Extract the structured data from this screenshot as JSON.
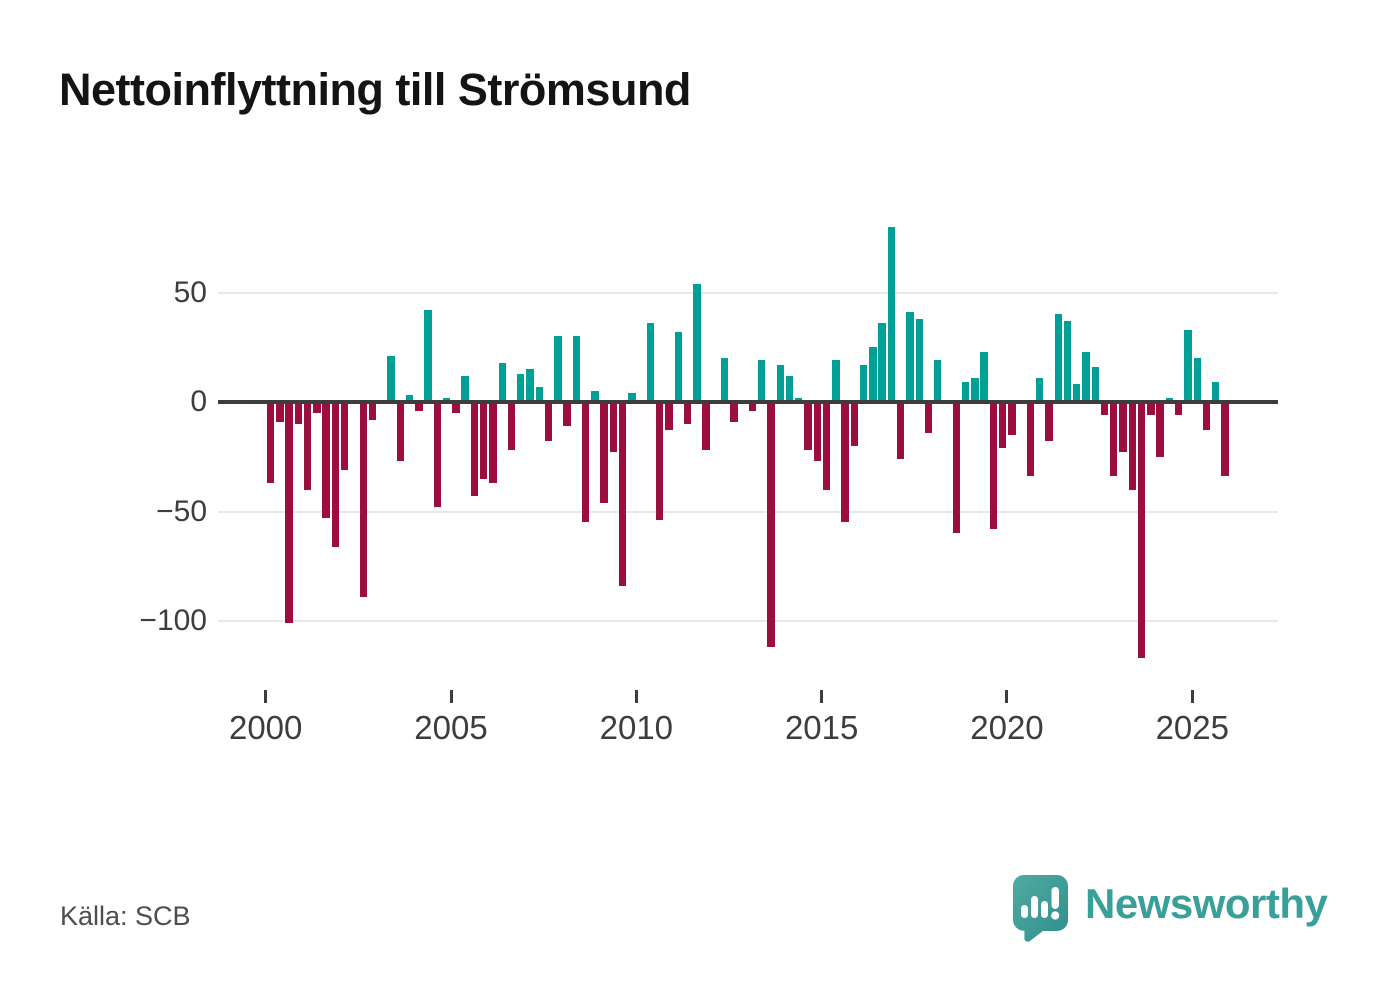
{
  "title": "Nettoinflyttning till Strömsund",
  "source": "Källa: SCB",
  "branding": {
    "name": "Newsworthy",
    "wordmark_color": "#38a099",
    "icon": "bar-chart-speech-bubble-icon",
    "icon_color_top": "#52aaa4",
    "icon_color_bottom": "#2f8f89"
  },
  "chart_data": {
    "type": "bar",
    "title": "Nettoinflyttning till Strömsund",
    "x_start_year": 2000,
    "x_frequency": "quarterly",
    "values": [
      -37,
      -9,
      -101,
      -10,
      -40,
      -5,
      -53,
      -66,
      -31,
      0,
      -89,
      -8,
      0,
      21,
      -27,
      3,
      -4,
      42,
      -48,
      2,
      -5,
      12,
      -43,
      -35,
      -37,
      18,
      -22,
      13,
      15,
      7,
      -18,
      30,
      -11,
      30,
      -55,
      5,
      -46,
      -23,
      -84,
      4,
      0,
      36,
      -54,
      -13,
      32,
      -10,
      54,
      -22,
      0,
      20,
      -9,
      0,
      -4,
      19,
      -112,
      17,
      12,
      2,
      -22,
      -27,
      -40,
      19,
      -55,
      -20,
      17,
      25,
      36,
      80,
      -26,
      41,
      38,
      -14,
      19,
      0,
      -60,
      9,
      11,
      23,
      -58,
      -21,
      -15,
      0,
      -34,
      11,
      -18,
      40,
      37,
      8,
      23,
      16,
      -6,
      -34,
      -23,
      -40,
      -117,
      -6,
      -25,
      2,
      -6,
      33,
      20,
      -13,
      9,
      -34
    ],
    "positive_color": "#00a096",
    "negative_color": "#9b0e3e",
    "yticks": [
      {
        "value": 50,
        "label": "50"
      },
      {
        "value": 0,
        "label": "0"
      },
      {
        "value": -50,
        "label": "−50"
      },
      {
        "value": -100,
        "label": "−100"
      }
    ],
    "xticks": [
      {
        "value": 2000,
        "label": "2000"
      },
      {
        "value": 2005,
        "label": "2005"
      },
      {
        "value": 2010,
        "label": "2010"
      },
      {
        "value": 2015,
        "label": "2015"
      },
      {
        "value": 2020,
        "label": "2020"
      },
      {
        "value": 2025,
        "label": "2025"
      }
    ],
    "ylim": [
      -125,
      90
    ],
    "grid": true,
    "legend": false
  }
}
